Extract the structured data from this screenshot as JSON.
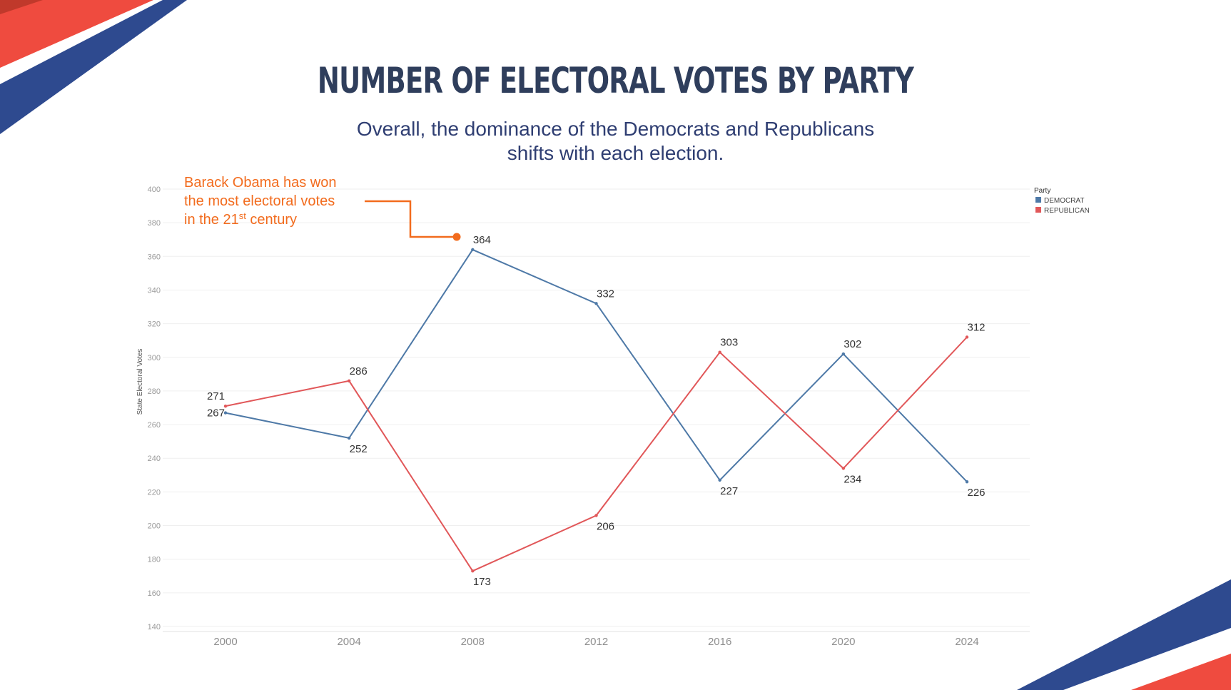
{
  "header": {
    "title": "NUMBER OF ELECTORAL VOTES BY PARTY",
    "subtitle_line1": "Overall, the dominance of the Democrats and Republicans",
    "subtitle_line2": "shifts with each election."
  },
  "colors": {
    "democrat": "#4e79a7",
    "republican": "#e15759",
    "annotation": "#f26b1d",
    "title": "#2f3e5c",
    "ribbon_red": "#ef4b3f",
    "ribbon_blue": "#2e4a8f"
  },
  "annotation": {
    "line1": "Barack Obama has won",
    "line2": "the most electoral votes",
    "line3_prefix": "in the 21",
    "line3_sup": "st",
    "line3_suffix": " century"
  },
  "chart_data": {
    "type": "line",
    "x": [
      "2000",
      "2004",
      "2008",
      "2012",
      "2016",
      "2020",
      "2024"
    ],
    "series": [
      {
        "name": "DEMOCRAT",
        "values": [
          267,
          252,
          364,
          332,
          227,
          302,
          226
        ]
      },
      {
        "name": "REPUBLICAN",
        "values": [
          271,
          286,
          173,
          206,
          303,
          234,
          312
        ]
      }
    ],
    "ylabel": "State Electoral Votes",
    "ylim": [
      140,
      400
    ],
    "yticks": [
      140,
      160,
      180,
      200,
      220,
      240,
      260,
      280,
      300,
      320,
      340,
      360,
      380,
      400
    ],
    "grid": true,
    "legend": {
      "title": "Party",
      "placement": "top-right"
    },
    "data_labels": true
  }
}
